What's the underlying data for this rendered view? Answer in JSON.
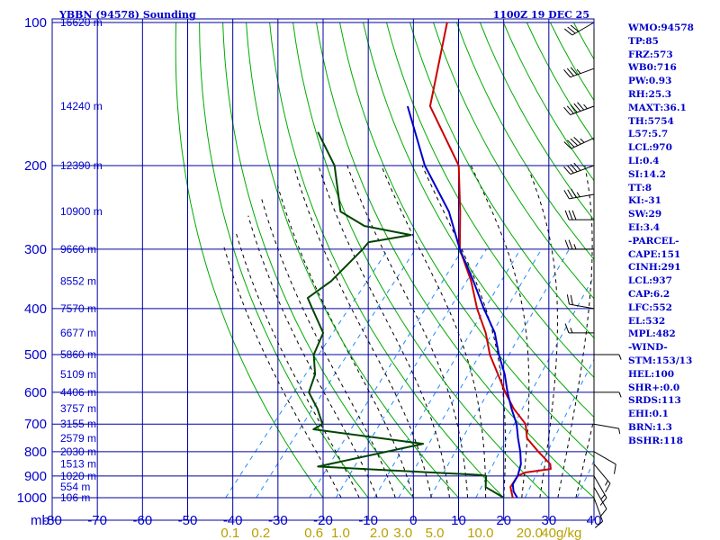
{
  "header": {
    "station": "YBBN (94578) Sounding",
    "time": "1100Z 19 DEC 25"
  },
  "indices": [
    "WMO:94578",
    "TP:85",
    "FRZ:573",
    "WB0:716",
    "PW:0.93",
    "RH:25.3",
    "MAXT:36.1",
    "TH:5754",
    "L57:5.7",
    "LCL:970",
    "LI:0.4",
    "SI:14.2",
    "TT:8",
    "KI:-31",
    "SW:29",
    "EI:3.4",
    "-PARCEL-",
    "CAPE:151",
    "CINH:291",
    "LCL:937",
    "CAP:6.2",
    "LFC:552",
    "EL:532",
    "MPL:482",
    "-WIND-",
    "STM:153/13",
    "HEL:100",
    "SHR+:0.0",
    "SRDS:113",
    "EHI:0.1",
    "BRN:1.3",
    "BSHR:118"
  ],
  "colors": {
    "grid": "#0000a0",
    "dry_adiabat": "#00aa00",
    "moist_adiabat": "#000000",
    "mixing_ratio": "#2288ff",
    "temperature": "#cc0000",
    "dewpoint": "#004400",
    "parcel": "#0000cc",
    "label": "#0000cc",
    "mixing_label": "#b8a000"
  },
  "chart_data": {
    "type": "line",
    "diagram": "skew-T log-P",
    "pressure_unit_label": "mb",
    "pressure_levels": [
      100,
      200,
      300,
      400,
      500,
      600,
      700,
      800,
      900,
      1000
    ],
    "pressure_labels": [
      "100",
      "200",
      "300",
      "400",
      "500",
      "600",
      "700",
      "800",
      "900",
      "1000"
    ],
    "temperature_ticks": [
      -80,
      -70,
      -60,
      -50,
      -40,
      -30,
      -20,
      -10,
      0,
      10,
      20,
      30,
      40
    ],
    "temperature_labels": [
      "-80",
      "-70",
      "-60",
      "-50",
      "-40",
      "-30",
      "-20",
      "-10",
      "0",
      "10",
      "20",
      "30",
      "40"
    ],
    "heights": [
      {
        "p": 100,
        "label": "16620 m"
      },
      {
        "p": 150,
        "label": "14240 m"
      },
      {
        "p": 200,
        "label": "12390 m"
      },
      {
        "p": 250,
        "label": "10900 m"
      },
      {
        "p": 300,
        "label": "9660 m"
      },
      {
        "p": 350,
        "label": "8552 m"
      },
      {
        "p": 400,
        "label": "7570 m"
      },
      {
        "p": 450,
        "label": "6677 m"
      },
      {
        "p": 500,
        "label": "5860 m"
      },
      {
        "p": 550,
        "label": "5109 m"
      },
      {
        "p": 600,
        "label": "4406 m"
      },
      {
        "p": 650,
        "label": "3757 m"
      },
      {
        "p": 700,
        "label": "3155 m"
      },
      {
        "p": 750,
        "label": "2579 m"
      },
      {
        "p": 800,
        "label": "2030 m"
      },
      {
        "p": 850,
        "label": "1513 m"
      },
      {
        "p": 900,
        "label": "1020 m"
      },
      {
        "p": 950,
        "label": "554 m"
      },
      {
        "p": 1000,
        "label": "106 m"
      }
    ],
    "mixing_ratio_labels": [
      "0.1",
      "0.2",
      "0.6",
      "1.0",
      "2.0",
      "3.0",
      "5.0",
      "10.0",
      "20.0",
      "40g/kg"
    ],
    "mixing_ratio_values": [
      0.1,
      0.2,
      0.6,
      1.0,
      2.0,
      3.0,
      5.0,
      10.0,
      20.0,
      40.0
    ],
    "series": [
      {
        "key": "temperature",
        "points": [
          [
            100,
            -82
          ],
          [
            150,
            -70
          ],
          [
            200,
            -52.5
          ],
          [
            250,
            -43.5
          ],
          [
            300,
            -36.5
          ],
          [
            350,
            -28
          ],
          [
            400,
            -21.5
          ],
          [
            450,
            -15
          ],
          [
            500,
            -10
          ],
          [
            550,
            -4.5
          ],
          [
            600,
            0.5
          ],
          [
            650,
            5.5
          ],
          [
            700,
            11
          ],
          [
            750,
            14
          ],
          [
            800,
            19
          ],
          [
            850,
            24
          ],
          [
            870,
            25
          ],
          [
            885,
            20
          ],
          [
            900,
            19
          ],
          [
            950,
            19.5
          ],
          [
            1000,
            22
          ]
        ]
      },
      {
        "key": "dewpoint",
        "points": [
          [
            170,
            -90
          ],
          [
            200,
            -80
          ],
          [
            250,
            -70
          ],
          [
            268,
            -62
          ],
          [
            280,
            -50
          ],
          [
            290,
            -58
          ],
          [
            300,
            -58
          ],
          [
            350,
            -59
          ],
          [
            380,
            -61
          ],
          [
            400,
            -58
          ],
          [
            450,
            -51
          ],
          [
            500,
            -49
          ],
          [
            550,
            -45
          ],
          [
            600,
            -43
          ],
          [
            650,
            -38
          ],
          [
            700,
            -34
          ],
          [
            718,
            -35
          ],
          [
            770,
            -8
          ],
          [
            860,
            -27
          ],
          [
            895,
            10
          ],
          [
            900,
            12
          ],
          [
            950,
            14
          ],
          [
            1000,
            20
          ]
        ]
      },
      {
        "key": "parcel",
        "points": [
          [
            150,
            -75
          ],
          [
            200,
            -60
          ],
          [
            250,
            -46
          ],
          [
            300,
            -36.5
          ],
          [
            350,
            -27.5
          ],
          [
            400,
            -20
          ],
          [
            450,
            -13
          ],
          [
            500,
            -8
          ],
          [
            550,
            -3
          ],
          [
            600,
            1
          ],
          [
            650,
            5
          ],
          [
            700,
            9
          ],
          [
            750,
            12
          ],
          [
            800,
            15
          ],
          [
            850,
            17.5
          ],
          [
            900,
            19
          ],
          [
            937,
            19.5
          ],
          [
            970,
            21
          ],
          [
            1000,
            23
          ]
        ]
      }
    ],
    "wind_barbs": [
      {
        "p": 100,
        "dir": 240,
        "spd": 30
      },
      {
        "p": 125,
        "dir": 250,
        "spd": 35
      },
      {
        "p": 150,
        "dir": 250,
        "spd": 55
      },
      {
        "p": 175,
        "dir": 245,
        "spd": 45
      },
      {
        "p": 200,
        "dir": 250,
        "spd": 40
      },
      {
        "p": 230,
        "dir": 260,
        "spd": 35
      },
      {
        "p": 260,
        "dir": 270,
        "spd": 30
      },
      {
        "p": 300,
        "dir": 270,
        "spd": 25
      },
      {
        "p": 400,
        "dir": 280,
        "spd": 20
      },
      {
        "p": 450,
        "dir": 270,
        "spd": 15
      },
      {
        "p": 500,
        "dir": 90,
        "spd": 5
      },
      {
        "p": 600,
        "dir": 90,
        "spd": 5
      },
      {
        "p": 700,
        "dir": 100,
        "spd": 5
      },
      {
        "p": 800,
        "dir": 120,
        "spd": 10
      },
      {
        "p": 850,
        "dir": 140,
        "spd": 15
      },
      {
        "p": 900,
        "dir": 150,
        "spd": 15
      },
      {
        "p": 950,
        "dir": 150,
        "spd": 10
      },
      {
        "p": 1000,
        "dir": 160,
        "spd": 10
      }
    ]
  }
}
